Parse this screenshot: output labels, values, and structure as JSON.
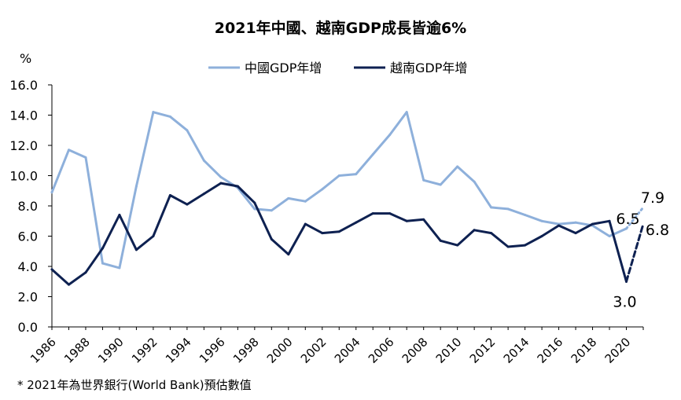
{
  "chart_data": {
    "type": "line",
    "title": "2021年中國、越南GDP成長皆逾6%",
    "ylabel": "%",
    "ylim": [
      0,
      16
    ],
    "yticks": [
      "0.0",
      "2.0",
      "4.0",
      "6.0",
      "8.0",
      "10.0",
      "12.0",
      "14.0",
      "16.0"
    ],
    "xlim": [
      1986,
      2021
    ],
    "xticks": [
      "1986",
      "1988",
      "1990",
      "1992",
      "1994",
      "1996",
      "1998",
      "2000",
      "2002",
      "2004",
      "2006",
      "2008",
      "2010",
      "2012",
      "2014",
      "2016",
      "2018",
      "2020"
    ],
    "grid": false,
    "legend": "top-center",
    "series": [
      {
        "name": "中國GDP年增",
        "color": "#8eb0db",
        "x": [
          1986,
          1987,
          1988,
          1989,
          1990,
          1991,
          1992,
          1993,
          1994,
          1995,
          1996,
          1997,
          1998,
          1999,
          2000,
          2001,
          2002,
          2003,
          2004,
          2005,
          2006,
          2007,
          2008,
          2009,
          2010,
          2011,
          2012,
          2013,
          2014,
          2015,
          2016,
          2017,
          2018,
          2019,
          2020
        ],
        "values": [
          8.9,
          11.7,
          11.2,
          4.2,
          3.9,
          9.3,
          14.2,
          13.9,
          13.0,
          11.0,
          9.9,
          9.2,
          7.8,
          7.7,
          8.5,
          8.3,
          9.1,
          10.0,
          10.1,
          11.4,
          12.7,
          14.2,
          9.7,
          9.4,
          10.6,
          9.6,
          7.9,
          7.8,
          7.4,
          7.0,
          6.8,
          6.9,
          6.7,
          6.0,
          6.5
        ],
        "forecast": {
          "x": [
            2020,
            2021
          ],
          "values": [
            6.5,
            7.9
          ]
        }
      },
      {
        "name": "越南GDP年增",
        "color": "#0e2151",
        "x": [
          1986,
          1987,
          1988,
          1989,
          1990,
          1991,
          1992,
          1993,
          1994,
          1995,
          1996,
          1997,
          1998,
          1999,
          2000,
          2001,
          2002,
          2003,
          2004,
          2005,
          2006,
          2007,
          2008,
          2009,
          2010,
          2011,
          2012,
          2013,
          2014,
          2015,
          2016,
          2017,
          2018,
          2019,
          2020
        ],
        "values": [
          3.8,
          2.8,
          3.6,
          5.2,
          7.4,
          5.1,
          6.0,
          8.7,
          8.1,
          8.8,
          9.5,
          9.3,
          8.2,
          5.8,
          4.8,
          6.8,
          6.2,
          6.3,
          6.9,
          7.5,
          7.5,
          7.0,
          7.1,
          5.7,
          5.4,
          6.4,
          6.2,
          5.3,
          5.4,
          6.0,
          6.7,
          6.2,
          6.8,
          7.0,
          3.0
        ],
        "forecast": {
          "x": [
            2020,
            2021
          ],
          "values": [
            3.0,
            6.8
          ]
        }
      }
    ],
    "annotations": [
      "6.5",
      "7.9",
      "6.8",
      "3.0"
    ],
    "footnote": "* 2021年為世界銀行(World Bank)預估數值"
  }
}
